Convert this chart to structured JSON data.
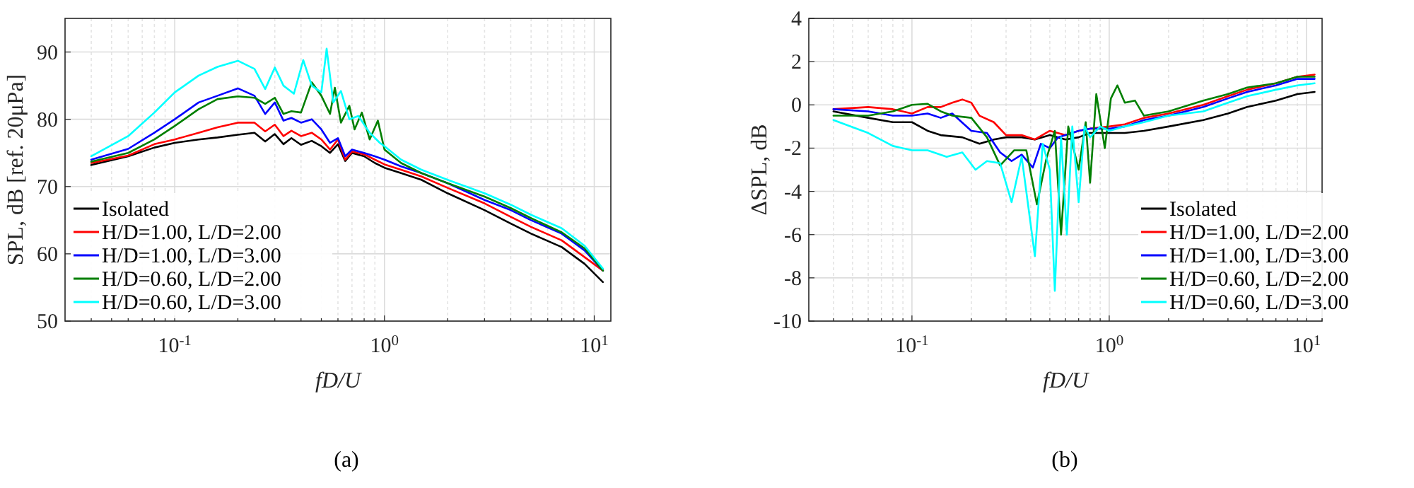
{
  "chart_data": [
    {
      "type": "line",
      "xlabel": "fD/U",
      "ylabel": "SPL, dB [ref. 20μPa]",
      "log": "x",
      "grid": true,
      "legend": "bottom left",
      "line_style": "solid",
      "annotations": [
        "(a)"
      ],
      "xlim": [
        0.03,
        12
      ],
      "ylim": [
        50,
        95
      ],
      "yticks": [
        50,
        60,
        70,
        80,
        90
      ],
      "xticks": [
        {
          "value": 0.04,
          "label": null
        },
        {
          "value": 0.05,
          "label": null
        },
        {
          "value": 0.06,
          "label": null
        },
        {
          "value": 0.07,
          "label": null
        },
        {
          "value": 0.08,
          "label": null
        },
        {
          "value": 0.09,
          "label": null
        },
        {
          "value": 0.1,
          "label": "10$^{-1}$"
        },
        {
          "value": 0.2,
          "label": null
        },
        {
          "value": 0.3,
          "label": null
        },
        {
          "value": 0.4,
          "label": null
        },
        {
          "value": 0.5,
          "label": null
        },
        {
          "value": 0.6,
          "label": null
        },
        {
          "value": 0.7,
          "label": null
        },
        {
          "value": 0.8,
          "label": null
        },
        {
          "value": 0.9,
          "label": null
        },
        {
          "value": 1,
          "label": "10$^{0}$"
        },
        {
          "value": 2,
          "label": null
        },
        {
          "value": 3,
          "label": null
        },
        {
          "value": 4,
          "label": null
        },
        {
          "value": 5,
          "label": null
        },
        {
          "value": 6,
          "label": null
        },
        {
          "value": 7,
          "label": null
        },
        {
          "value": 8,
          "label": null
        },
        {
          "value": 9,
          "label": null
        },
        {
          "value": 10,
          "label": "10$^{1}$"
        }
      ],
      "series": [
        {
          "name": "Isolated",
          "color": "#000000",
          "x": [
            0.04,
            0.06,
            0.08,
            0.1,
            0.13,
            0.16,
            0.2,
            0.24,
            0.27,
            0.3,
            0.33,
            0.36,
            0.4,
            0.45,
            0.5,
            0.55,
            0.6,
            0.65,
            0.7,
            0.8,
            0.9,
            1,
            1.2,
            1.5,
            2,
            3,
            4,
            5,
            7,
            9,
            11
          ],
          "values": [
            73.2,
            74.5,
            75.8,
            76.5,
            77,
            77.3,
            77.7,
            78,
            76.7,
            77.8,
            76.3,
            77.2,
            76.2,
            76.8,
            76,
            75,
            76.3,
            73.8,
            75,
            74.5,
            73.5,
            72.8,
            72,
            71,
            69,
            66.5,
            64.5,
            63,
            61,
            58.5,
            55.8
          ]
        },
        {
          "name": "H/D=1.00, L/D=2.00",
          "color": "#ff0000",
          "x": [
            0.04,
            0.06,
            0.08,
            0.1,
            0.13,
            0.16,
            0.2,
            0.24,
            0.27,
            0.3,
            0.33,
            0.36,
            0.4,
            0.45,
            0.5,
            0.55,
            0.6,
            0.65,
            0.7,
            0.8,
            0.9,
            1,
            1.2,
            1.5,
            2,
            3,
            4,
            5,
            7,
            9,
            11
          ],
          "values": [
            73.5,
            74.6,
            76.3,
            77,
            78,
            78.8,
            79.5,
            79.5,
            78.2,
            79.2,
            77.5,
            78.3,
            77.5,
            78,
            77,
            75.5,
            77,
            74,
            75.2,
            74.8,
            74,
            73.3,
            72.5,
            71.5,
            69.8,
            67.5,
            65.5,
            64,
            62,
            59.5,
            57.5
          ]
        },
        {
          "name": "H/D=1.00, L/D=3.00",
          "color": "#0000ff",
          "x": [
            0.04,
            0.06,
            0.08,
            0.1,
            0.13,
            0.16,
            0.2,
            0.24,
            0.27,
            0.3,
            0.33,
            0.36,
            0.4,
            0.45,
            0.5,
            0.55,
            0.6,
            0.65,
            0.7,
            0.8,
            0.9,
            1,
            1.2,
            1.5,
            2,
            3,
            4,
            5,
            7,
            9,
            11
          ],
          "values": [
            74,
            75.6,
            78,
            80,
            82.5,
            83.5,
            84.6,
            83.5,
            80.8,
            82.5,
            79.8,
            80.2,
            79.5,
            80,
            78.5,
            76.5,
            77.2,
            74.5,
            75.5,
            75,
            74.5,
            74,
            73,
            72,
            70.5,
            68,
            66.5,
            65,
            63,
            60.5,
            57.5
          ]
        },
        {
          "name": "H/D=0.60, L/D=2.00",
          "color": "#007f00",
          "x": [
            0.04,
            0.06,
            0.08,
            0.1,
            0.13,
            0.16,
            0.2,
            0.24,
            0.27,
            0.3,
            0.33,
            0.36,
            0.4,
            0.45,
            0.5,
            0.55,
            0.58,
            0.62,
            0.68,
            0.72,
            0.78,
            0.85,
            0.93,
            1,
            1.2,
            1.5,
            2,
            3,
            4,
            5,
            7,
            9,
            11
          ],
          "values": [
            73.7,
            75,
            77,
            79,
            81.5,
            83,
            83.4,
            83.2,
            82.3,
            83.2,
            80.8,
            81.2,
            81,
            85.5,
            83.5,
            80.8,
            84.7,
            79.5,
            82,
            78.5,
            81,
            77,
            79.8,
            75.5,
            73.5,
            72,
            70.5,
            68.5,
            66.8,
            65.3,
            63.2,
            60.8,
            57.5
          ]
        },
        {
          "name": "H/D=0.60, L/D=3.00",
          "color": "#00ffff",
          "x": [
            0.04,
            0.06,
            0.08,
            0.1,
            0.13,
            0.16,
            0.2,
            0.24,
            0.27,
            0.3,
            0.33,
            0.37,
            0.41,
            0.45,
            0.5,
            0.53,
            0.57,
            0.62,
            0.68,
            0.75,
            0.85,
            0.95,
            1,
            1.2,
            1.5,
            2,
            3,
            4,
            5,
            7,
            9,
            11
          ],
          "values": [
            74.5,
            77.5,
            81,
            84,
            86.5,
            87.8,
            88.7,
            87.5,
            84.5,
            87.7,
            85,
            83.8,
            88.8,
            85,
            84,
            90.5,
            82.5,
            84.2,
            80,
            80.5,
            78,
            76.5,
            76,
            74,
            72.5,
            71,
            69,
            67.3,
            65.8,
            63.8,
            61.2,
            57.8
          ]
        }
      ]
    },
    {
      "type": "line",
      "xlabel": "fD/U",
      "ylabel": "ΔSPL, dB",
      "log": "x",
      "grid": true,
      "legend": "bottom right",
      "line_style": "solid",
      "annotations": [
        "(b)"
      ],
      "xlim": [
        0.03,
        12
      ],
      "ylim": [
        -10,
        4
      ],
      "yticks": [
        -10,
        -8,
        -6,
        -4,
        -2,
        0,
        2,
        4
      ],
      "xticks": [
        {
          "value": 0.04,
          "label": null
        },
        {
          "value": 0.05,
          "label": null
        },
        {
          "value": 0.06,
          "label": null
        },
        {
          "value": 0.07,
          "label": null
        },
        {
          "value": 0.08,
          "label": null
        },
        {
          "value": 0.09,
          "label": null
        },
        {
          "value": 0.1,
          "label": "10$^{-1}$"
        },
        {
          "value": 0.2,
          "label": null
        },
        {
          "value": 0.3,
          "label": null
        },
        {
          "value": 0.4,
          "label": null
        },
        {
          "value": 0.5,
          "label": null
        },
        {
          "value": 0.6,
          "label": null
        },
        {
          "value": 0.7,
          "label": null
        },
        {
          "value": 0.8,
          "label": null
        },
        {
          "value": 0.9,
          "label": null
        },
        {
          "value": 1,
          "label": "10$^{0}$"
        },
        {
          "value": 2,
          "label": null
        },
        {
          "value": 3,
          "label": null
        },
        {
          "value": 4,
          "label": null
        },
        {
          "value": 5,
          "label": null
        },
        {
          "value": 6,
          "label": null
        },
        {
          "value": 7,
          "label": null
        },
        {
          "value": 8,
          "label": null
        },
        {
          "value": 9,
          "label": null
        },
        {
          "value": 10,
          "label": "10$^{1}$"
        }
      ],
      "series": [
        {
          "name": "Isolated",
          "color": "#000000",
          "x": [
            0.04,
            0.06,
            0.08,
            0.1,
            0.12,
            0.14,
            0.18,
            0.22,
            0.26,
            0.3,
            0.36,
            0.42,
            0.5,
            0.6,
            0.7,
            0.8,
            1,
            1.2,
            1.5,
            2,
            3,
            4,
            5,
            7,
            9,
            11
          ],
          "values": [
            -0.3,
            -0.6,
            -0.8,
            -0.8,
            -1.2,
            -1.4,
            -1.5,
            -1.8,
            -1.6,
            -1.5,
            -1.5,
            -1.6,
            -1.4,
            -1.6,
            -1.5,
            -1.3,
            -1.3,
            -1.3,
            -1.2,
            -1,
            -0.7,
            -0.4,
            -0.1,
            0.2,
            0.5,
            0.6
          ]
        },
        {
          "name": "H/D=1.00, L/D=2.00",
          "color": "#ff0000",
          "x": [
            0.04,
            0.06,
            0.08,
            0.1,
            0.12,
            0.14,
            0.16,
            0.18,
            0.2,
            0.22,
            0.26,
            0.3,
            0.36,
            0.42,
            0.5,
            0.6,
            0.7,
            0.8,
            1,
            1.2,
            1.5,
            2,
            3,
            4,
            5,
            7,
            9,
            11
          ],
          "values": [
            -0.2,
            -0.1,
            -0.2,
            -0.4,
            -0.1,
            -0.1,
            0.1,
            0.25,
            0.1,
            -0.5,
            -0.8,
            -1.4,
            -1.4,
            -1.6,
            -1.2,
            -1.4,
            -1.2,
            -1.1,
            -1,
            -0.9,
            -0.6,
            -0.4,
            0,
            0.4,
            0.7,
            1,
            1.3,
            1.4
          ]
        },
        {
          "name": "H/D=1.00, L/D=3.00",
          "color": "#0000ff",
          "x": [
            0.04,
            0.06,
            0.08,
            0.1,
            0.12,
            0.14,
            0.16,
            0.2,
            0.24,
            0.28,
            0.32,
            0.36,
            0.41,
            0.45,
            0.5,
            0.55,
            0.6,
            0.7,
            0.8,
            1,
            1.2,
            1.5,
            2,
            3,
            4,
            5,
            7,
            9,
            11
          ],
          "values": [
            -0.2,
            -0.3,
            -0.5,
            -0.5,
            -0.4,
            -0.6,
            -0.4,
            -1.2,
            -1.3,
            -2.2,
            -2.6,
            -2.3,
            -2.9,
            -1.8,
            -2,
            -1.5,
            -1.4,
            -1.2,
            -1.1,
            -1.1,
            -1,
            -0.7,
            -0.5,
            -0.1,
            0.3,
            0.6,
            0.9,
            1.2,
            1.2
          ]
        },
        {
          "name": "H/D=0.60, L/D=2.00",
          "color": "#007f00",
          "x": [
            0.04,
            0.06,
            0.08,
            0.1,
            0.12,
            0.14,
            0.16,
            0.2,
            0.24,
            0.28,
            0.33,
            0.38,
            0.43,
            0.48,
            0.53,
            0.57,
            0.62,
            0.7,
            0.76,
            0.8,
            0.86,
            0.95,
            1.02,
            1.1,
            1.2,
            1.35,
            1.5,
            2,
            3,
            4,
            5,
            7,
            9,
            11
          ],
          "values": [
            -0.5,
            -0.5,
            -0.3,
            0,
            0.05,
            -0.3,
            -0.5,
            -0.6,
            -1.5,
            -2.8,
            -2.1,
            -2.1,
            -4.6,
            -2.5,
            -1.2,
            -6,
            -1,
            -3,
            -0.8,
            -3.6,
            0.5,
            -2,
            0.3,
            0.9,
            0.1,
            0.2,
            -0.5,
            -0.3,
            0.2,
            0.5,
            0.8,
            1,
            1.3,
            1.3
          ]
        },
        {
          "name": "H/D=0.60, L/D=3.00",
          "color": "#00ffff",
          "x": [
            0.04,
            0.06,
            0.08,
            0.1,
            0.12,
            0.15,
            0.18,
            0.21,
            0.24,
            0.28,
            0.32,
            0.36,
            0.42,
            0.46,
            0.5,
            0.53,
            0.57,
            0.61,
            0.65,
            0.7,
            0.75,
            0.8,
            0.9,
            1,
            1.2,
            1.5,
            2,
            3,
            4,
            5,
            7,
            9,
            11
          ],
          "values": [
            -0.7,
            -1.3,
            -1.9,
            -2.1,
            -2.1,
            -2.4,
            -2.2,
            -3,
            -2.6,
            -2.7,
            -4.5,
            -2.4,
            -7,
            -1.8,
            -3,
            -8.6,
            -1.5,
            -6,
            -1,
            -4.5,
            -1,
            -1.5,
            -1,
            -1.2,
            -1,
            -0.8,
            -0.5,
            -0.3,
            0.1,
            0.4,
            0.7,
            0.9,
            1
          ]
        }
      ]
    }
  ]
}
